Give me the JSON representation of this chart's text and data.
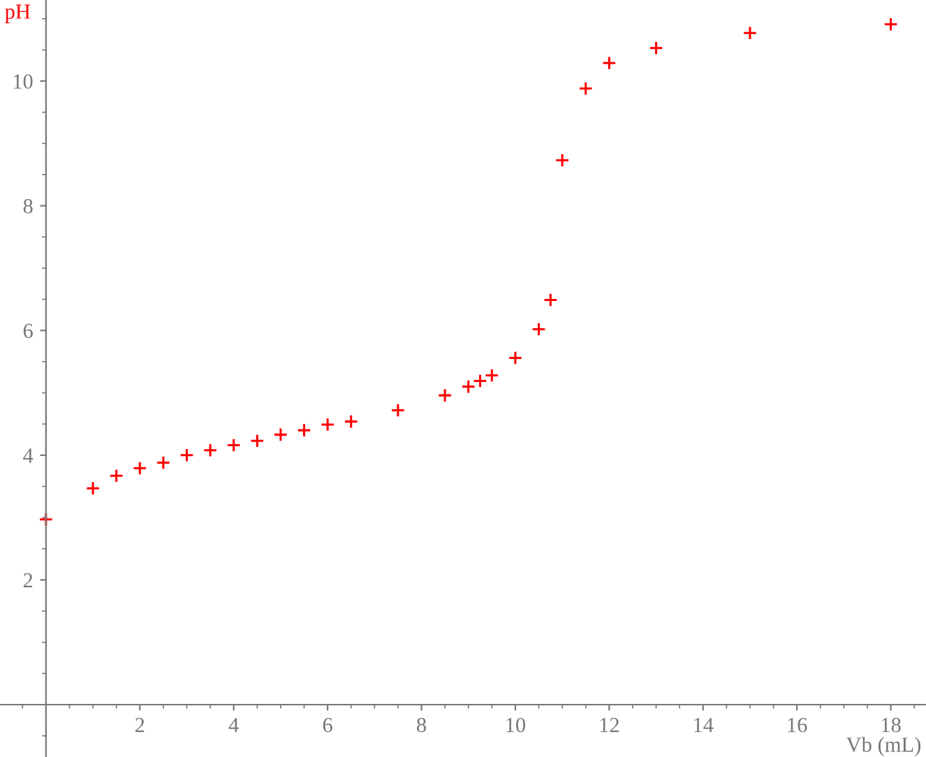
{
  "chart_data": {
    "type": "scatter",
    "xlabel": "Vb (mL)",
    "ylabel": "pH",
    "x": [
      0,
      1,
      1.5,
      2,
      2.5,
      3,
      3.5,
      4,
      4.5,
      5,
      5.5,
      6,
      6.5,
      7.5,
      8.5,
      9,
      9.25,
      9.5,
      10,
      10.5,
      10.75,
      11,
      11.5,
      12,
      13,
      15,
      18
    ],
    "series": [
      {
        "color": "#ff0000",
        "values": [
          2.97,
          3.47,
          3.67,
          3.79,
          3.88,
          4.0,
          4.08,
          4.16,
          4.23,
          4.33,
          4.4,
          4.49,
          4.54,
          4.72,
          4.96,
          5.1,
          5.19,
          5.28,
          5.56,
          6.02,
          6.49,
          8.73,
          9.88,
          10.29,
          10.53,
          10.77,
          10.91
        ]
      }
    ],
    "marker": "cross",
    "xlim": [
      -0.98,
      18.75
    ],
    "ylim": [
      -0.84,
      11.3
    ],
    "xticks": [
      2,
      4,
      6,
      8,
      10,
      12,
      14,
      16,
      18
    ],
    "yticks": [
      2,
      4,
      6,
      8,
      10
    ],
    "grid": false,
    "legend": false
  }
}
